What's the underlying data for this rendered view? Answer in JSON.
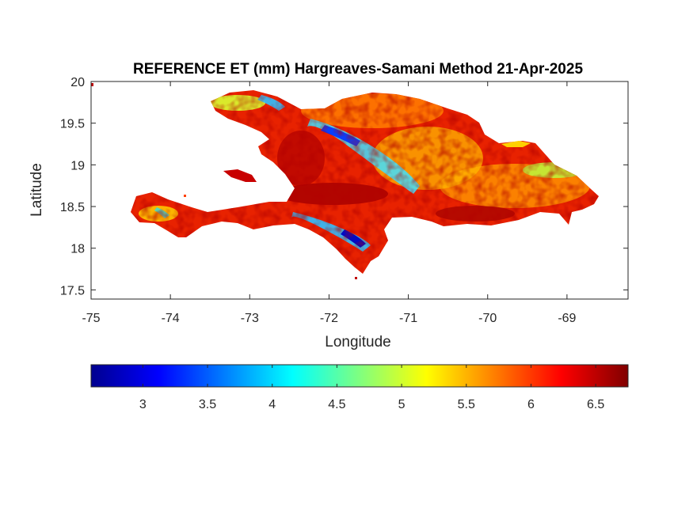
{
  "chart_data": {
    "type": "heatmap",
    "title": "REFERENCE ET (mm) Hargreaves-Samani Method  21-Apr-2025",
    "xlabel": "Longitude",
    "ylabel": "Latitude",
    "xlim": [
      -75,
      -68.23
    ],
    "ylim": [
      17.39,
      20
    ],
    "x_ticks": [
      -75,
      -74,
      -73,
      -72,
      -71,
      -70,
      -69
    ],
    "x_tick_labels": [
      "-75",
      "-74",
      "-73",
      "-72",
      "-71",
      "-70",
      "-69"
    ],
    "y_ticks": [
      17.5,
      18,
      18.5,
      19,
      19.5,
      20
    ],
    "y_tick_labels": [
      "17.5",
      "18",
      "18.5",
      "19",
      "19.5",
      "20"
    ],
    "colormap": "jet",
    "colorbar": {
      "location": "bottom",
      "limits": [
        2.6,
        6.75
      ],
      "ticks": [
        3,
        3.5,
        4,
        4.5,
        5,
        5.5,
        6,
        6.5
      ],
      "tick_labels": [
        "3",
        "3.5",
        "4",
        "4.5",
        "5",
        "5.5",
        "6",
        "6.5"
      ]
    },
    "grid": false,
    "region": "Hispaniola (Haiti and Dominican Republic)",
    "value_range_shown": [
      2.8,
      6.75
    ],
    "notes_visible": "Land values mostly 5.8–6.7 mm; low values (~3–4 mm) in mountain ranges"
  }
}
